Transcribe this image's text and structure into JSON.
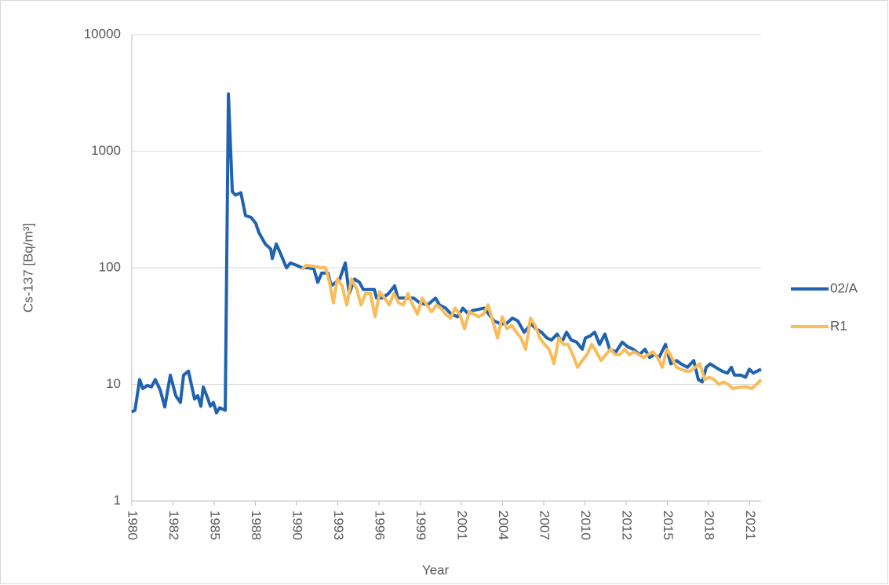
{
  "chart_data": {
    "type": "line",
    "y_label": "Cs-137 [Bq/m³]",
    "x_label": "Year",
    "log_y": true,
    "grid": true,
    "legend": "right",
    "ylim": [
      1,
      10000
    ],
    "yticks": [
      1,
      10,
      100,
      1000,
      10000
    ],
    "xlim": [
      1980,
      2021.83
    ],
    "xticks": [
      {
        "value": 1980.0,
        "label": "1980"
      },
      {
        "value": 1982.74,
        "label": "1982"
      },
      {
        "value": 1985.48,
        "label": "1985"
      },
      {
        "value": 1988.21,
        "label": "1988"
      },
      {
        "value": 1990.95,
        "label": "1990"
      },
      {
        "value": 1993.69,
        "label": "1993"
      },
      {
        "value": 1996.43,
        "label": "1996"
      },
      {
        "value": 1999.17,
        "label": "1999"
      },
      {
        "value": 2001.9,
        "label": "2001"
      },
      {
        "value": 2004.64,
        "label": "2004"
      },
      {
        "value": 2007.38,
        "label": "2007"
      },
      {
        "value": 2010.12,
        "label": "2010"
      },
      {
        "value": 2012.86,
        "label": "2012"
      },
      {
        "value": 2015.6,
        "label": "2015"
      },
      {
        "value": 2018.33,
        "label": "2018"
      },
      {
        "value": 2021.07,
        "label": "2021"
      }
    ],
    "series": [
      {
        "name": "02/A",
        "color": "#1f63b0",
        "x": [
          1980.0,
          1980.21,
          1980.52,
          1980.73,
          1981.04,
          1981.3,
          1981.56,
          1981.88,
          1982.19,
          1982.56,
          1982.92,
          1983.23,
          1983.44,
          1983.76,
          1984.17,
          1984.38,
          1984.59,
          1984.75,
          1985.06,
          1985.22,
          1985.42,
          1985.63,
          1985.84,
          1986.21,
          1986.42,
          1986.68,
          1986.89,
          1987.25,
          1987.56,
          1987.93,
          1988.24,
          1988.45,
          1988.87,
          1989.23,
          1989.34,
          1989.6,
          1989.91,
          1990.28,
          1990.54,
          1990.95,
          1991.32,
          1991.74,
          1992.1,
          1992.36,
          1992.62,
          1993.04,
          1993.25,
          1993.56,
          1993.82,
          1994.19,
          1994.45,
          1994.81,
          1995.13,
          1995.39,
          1995.75,
          1996.12,
          1996.27,
          1996.64,
          1997.06,
          1997.47,
          1997.68,
          1998.1,
          1998.36,
          1998.73,
          1999.14,
          1999.66,
          2000.19,
          2000.45,
          2000.86,
          2001.23,
          2001.65,
          2002.01,
          2002.38,
          2002.64,
          2003.05,
          2003.42,
          2003.73,
          2004.09,
          2004.51,
          2004.88,
          2005.3,
          2005.66,
          2006.08,
          2006.55,
          2006.86,
          2007.23,
          2007.59,
          2007.9,
          2008.27,
          2008.58,
          2008.9,
          2009.21,
          2009.57,
          2009.94,
          2010.15,
          2010.46,
          2010.77,
          2011.09,
          2011.45,
          2011.76,
          2012.18,
          2012.6,
          2012.96,
          2013.33,
          2013.75,
          2014.11,
          2014.42,
          2014.74,
          2015.05,
          2015.47,
          2015.83,
          2016.2,
          2016.51,
          2016.93,
          2017.35,
          2017.66,
          2017.92,
          2018.18,
          2018.44,
          2018.81,
          2019.23,
          2019.59,
          2019.85,
          2020.06,
          2020.48,
          2020.79,
          2021.05,
          2021.31,
          2021.83
        ],
        "values": [
          5.8,
          6.0,
          11,
          9.2,
          9.8,
          9.5,
          11,
          9,
          6.4,
          12,
          8,
          7,
          12,
          13,
          7.5,
          8,
          6.5,
          9.5,
          7.5,
          6.5,
          7,
          5.7,
          6.3,
          6.0,
          3100,
          450,
          420,
          440,
          280,
          270,
          240,
          200,
          160,
          145,
          120,
          160,
          130,
          100,
          110,
          105,
          100,
          100,
          98,
          75,
          90,
          90,
          70,
          75,
          80,
          110,
          60,
          80,
          75,
          65,
          65,
          65,
          55,
          55,
          60,
          70,
          55,
          55,
          55,
          55,
          50,
          48,
          55,
          48,
          45,
          40,
          38,
          45,
          40,
          43,
          44,
          45,
          40,
          35,
          33,
          33,
          37,
          35,
          28,
          33,
          30,
          28,
          25,
          24,
          27,
          23,
          28,
          24,
          23,
          20,
          25,
          26,
          28,
          22,
          27,
          20,
          19,
          23,
          21,
          20,
          18,
          20,
          17,
          18,
          17,
          22,
          15,
          16,
          15,
          14,
          16,
          11,
          10.5,
          14,
          15,
          14,
          13,
          12.5,
          14,
          12,
          12,
          11.5,
          13.5,
          12.5,
          13.5
        ]
      },
      {
        "name": "R1",
        "color": "#f9bc5b",
        "x": [
          1991.32,
          1991.58,
          1992.1,
          1992.62,
          1992.88,
          1993.14,
          1993.4,
          1993.66,
          1993.98,
          1994.29,
          1994.6,
          1994.97,
          1995.23,
          1995.54,
          1995.86,
          1996.17,
          1996.48,
          1996.8,
          1997.11,
          1997.42,
          1997.74,
          1998.05,
          1998.36,
          1998.67,
          1998.99,
          1999.3,
          1999.61,
          1999.93,
          2000.24,
          2000.55,
          2000.86,
          2001.18,
          2001.49,
          2001.8,
          2002.12,
          2002.43,
          2002.74,
          2003.05,
          2003.37,
          2003.68,
          2003.99,
          2004.31,
          2004.62,
          2004.93,
          2005.25,
          2005.56,
          2005.87,
          2006.18,
          2006.5,
          2006.81,
          2007.12,
          2007.44,
          2007.75,
          2008.06,
          2008.38,
          2008.69,
          2009.0,
          2009.31,
          2009.63,
          2009.94,
          2010.25,
          2010.57,
          2010.88,
          2011.19,
          2011.51,
          2011.82,
          2012.13,
          2012.44,
          2012.76,
          2013.07,
          2013.38,
          2013.7,
          2014.01,
          2014.32,
          2014.63,
          2014.95,
          2015.26,
          2015.57,
          2015.89,
          2016.2,
          2016.51,
          2016.83,
          2017.14,
          2017.45,
          2017.76,
          2018.08,
          2018.39,
          2018.7,
          2019.02,
          2019.33,
          2019.64,
          2019.95,
          2020.27,
          2020.58,
          2020.89,
          2021.21,
          2021.52,
          2021.83
        ],
        "values": [
          97,
          105,
          103,
          100,
          100,
          75,
          50,
          80,
          70,
          48,
          80,
          65,
          48,
          60,
          60,
          38,
          62,
          55,
          48,
          60,
          50,
          48,
          60,
          48,
          40,
          55,
          48,
          42,
          48,
          45,
          40,
          37,
          45,
          40,
          30,
          42,
          40,
          38,
          40,
          48,
          35,
          25,
          38,
          30,
          32,
          28,
          25,
          20,
          37,
          32,
          25,
          22,
          20,
          15,
          25,
          22,
          22,
          18,
          14,
          16,
          18,
          22,
          19,
          16,
          18,
          20,
          18,
          18,
          20,
          18,
          19,
          18,
          17,
          18,
          19,
          17,
          14,
          20,
          17,
          14,
          13.5,
          13,
          13,
          14,
          15,
          11,
          11.5,
          11,
          10,
          10.5,
          10,
          9.2,
          9.4,
          9.5,
          9.5,
          9.2,
          10,
          11
        ]
      }
    ]
  }
}
